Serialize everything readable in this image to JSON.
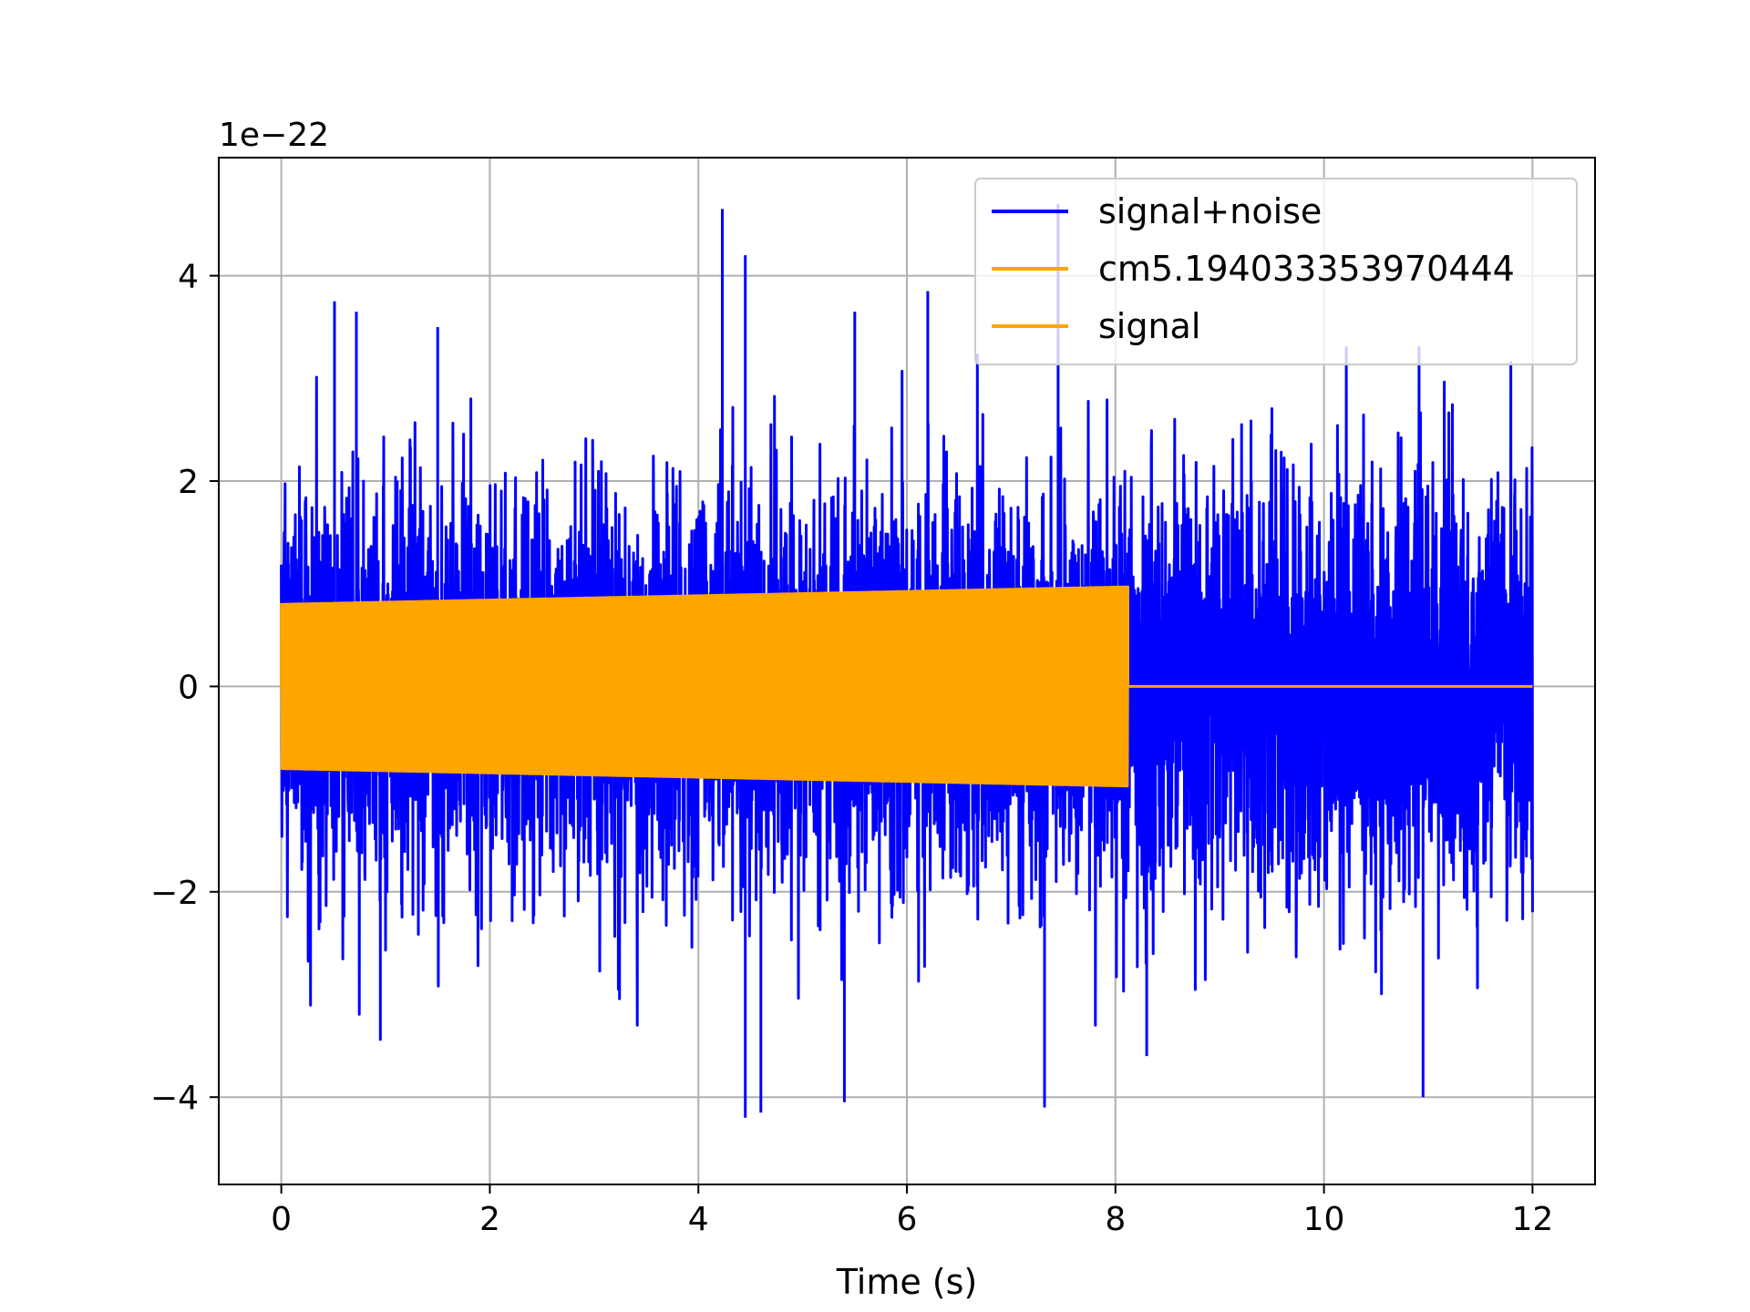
{
  "chart_data": {
    "type": "line",
    "title": "",
    "xlabel": "Time (s)",
    "ylabel": "",
    "y_offset_label": "1e−22",
    "y_scale_factor": 1e-22,
    "xlim": [
      -0.6,
      12.6
    ],
    "ylim": [
      -4.85,
      5.15
    ],
    "xticks": [
      0,
      2,
      4,
      6,
      8,
      10,
      12
    ],
    "yticks": [
      -4,
      -2,
      0,
      2,
      4
    ],
    "ytick_labels": [
      "−4",
      "−2",
      "0",
      "2",
      "4"
    ],
    "grid": true,
    "legend_position": "top-right",
    "series": [
      {
        "name": "signal+noise",
        "color": "#0000ff",
        "description": "Noisy strain time series from t=0 to t=12 s, roughly between -4.2 and 4.7 (x1e-22)",
        "t_range": [
          0,
          12
        ],
        "typical_band": [
          -2.0,
          2.0
        ],
        "peaks": [
          {
            "x": 0.51,
            "y": 3.75
          },
          {
            "x": 0.72,
            "y": 3.65
          },
          {
            "x": 1.5,
            "y": 3.5
          },
          {
            "x": 4.23,
            "y": 4.65
          },
          {
            "x": 4.45,
            "y": 4.2
          },
          {
            "x": 5.5,
            "y": 3.65
          },
          {
            "x": 6.2,
            "y": 3.85
          },
          {
            "x": 7.45,
            "y": 4.7
          },
          {
            "x": 0.95,
            "y": -3.45
          },
          {
            "x": 4.45,
            "y": -4.2
          },
          {
            "x": 4.6,
            "y": -4.15
          },
          {
            "x": 5.4,
            "y": -4.05
          },
          {
            "x": 7.32,
            "y": -4.1
          },
          {
            "x": 8.3,
            "y": -3.6
          },
          {
            "x": 10.95,
            "y": -4.0
          }
        ]
      },
      {
        "name": "cm5.194033353970444",
        "color": "#ffa500",
        "description": "Legend entry only"
      },
      {
        "name": "signal",
        "color": "#ffa500",
        "description": "Oscillating signal with slowly growing amplitude, present from t=0 to t≈8.12 s, zero afterwards",
        "t_start": 0,
        "t_end": 8.12,
        "amplitude_start": 0.8,
        "amplitude_end": 0.97,
        "after_end_value": 0
      }
    ]
  }
}
